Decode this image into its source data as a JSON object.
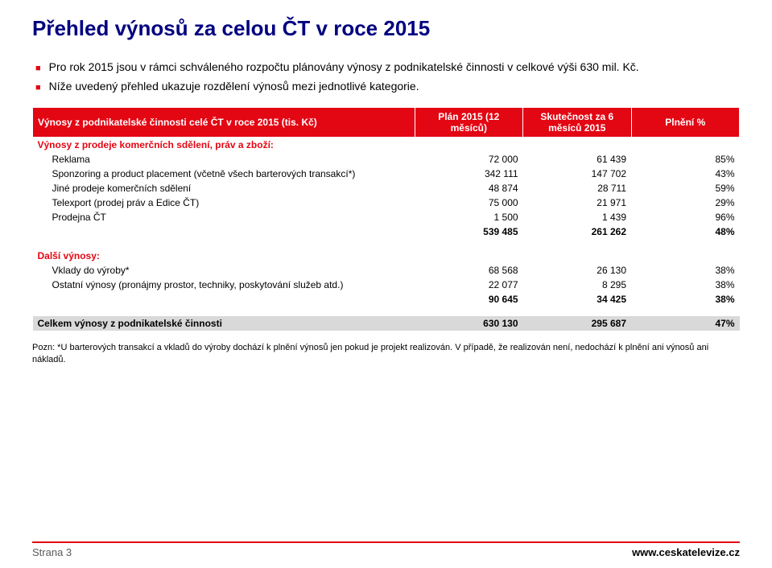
{
  "title": "Přehled výnosů za celou ČT v roce 2015",
  "bullets": [
    "Pro rok 2015 jsou v rámci schváleného rozpočtu plánovány výnosy z podnikatelské činnosti v celkové výši 630 mil. Kč.",
    "Níže uvedený přehled ukazuje rozdělení výnosů mezi jednotlivé kategorie."
  ],
  "table": {
    "header": {
      "c0": "Výnosy z podnikatelské činnosti celé ČT v roce 2015 (tis. Kč)",
      "c1": "Plán 2015 (12 měsíců)",
      "c2": "Skutečnost za 6 měsíců 2015",
      "c3": "Plnění %"
    },
    "section1_label": "Výnosy z prodeje komerčních sdělení, práv a zboží:",
    "rows1": [
      {
        "label": "Reklama",
        "v1": "72 000",
        "v2": "61 439",
        "v3": "85%"
      },
      {
        "label": "Sponzoring a product placement (včetně všech barterových transakcí*)",
        "v1": "342 111",
        "v2": "147 702",
        "v3": "43%"
      },
      {
        "label": "Jiné prodeje komerčních sdělení",
        "v1": "48 874",
        "v2": "28 711",
        "v3": "59%"
      },
      {
        "label": "Telexport (prodej práv a Edice ČT)",
        "v1": "75 000",
        "v2": "21 971",
        "v3": "29%"
      },
      {
        "label": "Prodejna ČT",
        "v1": "1 500",
        "v2": "1 439",
        "v3": "96%"
      }
    ],
    "subtotal1": {
      "v1": "539 485",
      "v2": "261 262",
      "v3": "48%"
    },
    "section2_label": "Další výnosy:",
    "rows2": [
      {
        "label": "Vklady do výroby*",
        "v1": "68 568",
        "v2": "26 130",
        "v3": "38%"
      },
      {
        "label": "Ostatní výnosy (pronájmy prostor, techniky, poskytování služeb atd.)",
        "v1": "22 077",
        "v2": "8 295",
        "v3": "38%"
      }
    ],
    "subtotal2": {
      "v1": "90 645",
      "v2": "34 425",
      "v3": "38%"
    },
    "grand": {
      "label": "Celkem výnosy z podnikatelské činnosti",
      "v1": "630 130",
      "v2": "295 687",
      "v3": "47%"
    }
  },
  "note": "Pozn: *U barterových transakcí a vkladů do výroby dochází k plnění výnosů jen pokud je projekt realizován. V případě, že realizován není, nedochází k plnění ani výnosů ani nákladů.",
  "footer": {
    "left": "Strana 3",
    "right": "www.ceskatelevize.cz"
  },
  "colors": {
    "accent": "#e30613",
    "title": "#000080",
    "total_bg": "#d9d9d9"
  }
}
